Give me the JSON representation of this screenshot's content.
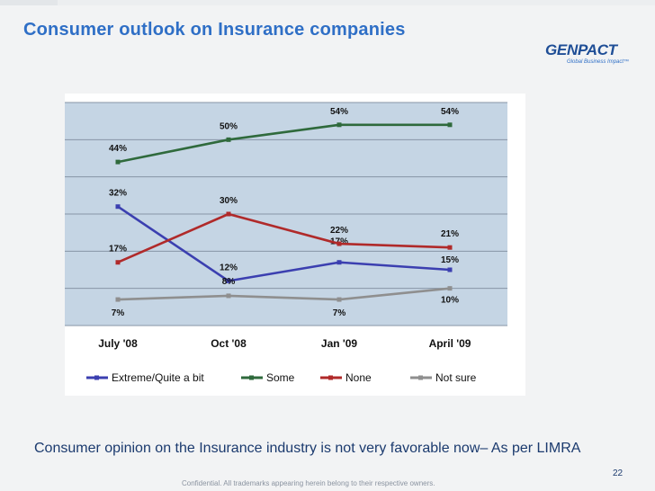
{
  "slide": {
    "title": "Consumer outlook on Insurance companies",
    "caption": "Consumer opinion on the Insurance industry is not very favorable now– As per LIMRA",
    "page_number": "22",
    "footer": "Confidential.  All trademarks appearing herein belong to their respective owners.",
    "logo": {
      "name": "GENPACT",
      "tagline": "Global Business Impact™"
    }
  },
  "colors": {
    "title": "#2f6fc6",
    "plot_fill": "#c5d5e4",
    "extreme": "#3b3fb0",
    "some": "#2f6a3c",
    "none": "#b02a2a",
    "not_sure": "#8f8f8f"
  },
  "chart_data": {
    "type": "line",
    "title": "",
    "xlabel": "",
    "ylabel": "",
    "categories": [
      "July '08",
      "Oct '08",
      "Jan '09",
      "April '09"
    ],
    "ylim": [
      0,
      60
    ],
    "grid": true,
    "legend_position": "bottom",
    "series": [
      {
        "name": "Extreme/Quite a bit",
        "values": [
          32,
          12,
          17,
          15
        ],
        "labels": [
          "32%",
          "12%",
          "17%",
          "15%"
        ],
        "color": "#3b3fb0"
      },
      {
        "name": "Some",
        "values": [
          44,
          50,
          54,
          54
        ],
        "labels": [
          "44%",
          "50%",
          "54%",
          "54%"
        ],
        "color": "#2f6a3c"
      },
      {
        "name": "None",
        "values": [
          17,
          30,
          22,
          21
        ],
        "labels": [
          "17%",
          "30%",
          "22%",
          "21%"
        ],
        "color": "#b02a2a"
      },
      {
        "name": "Not sure",
        "values": [
          7,
          8,
          7,
          10
        ],
        "labels": [
          "7%",
          "8%",
          "7%",
          "10%"
        ],
        "color": "#8f8f8f"
      }
    ]
  }
}
